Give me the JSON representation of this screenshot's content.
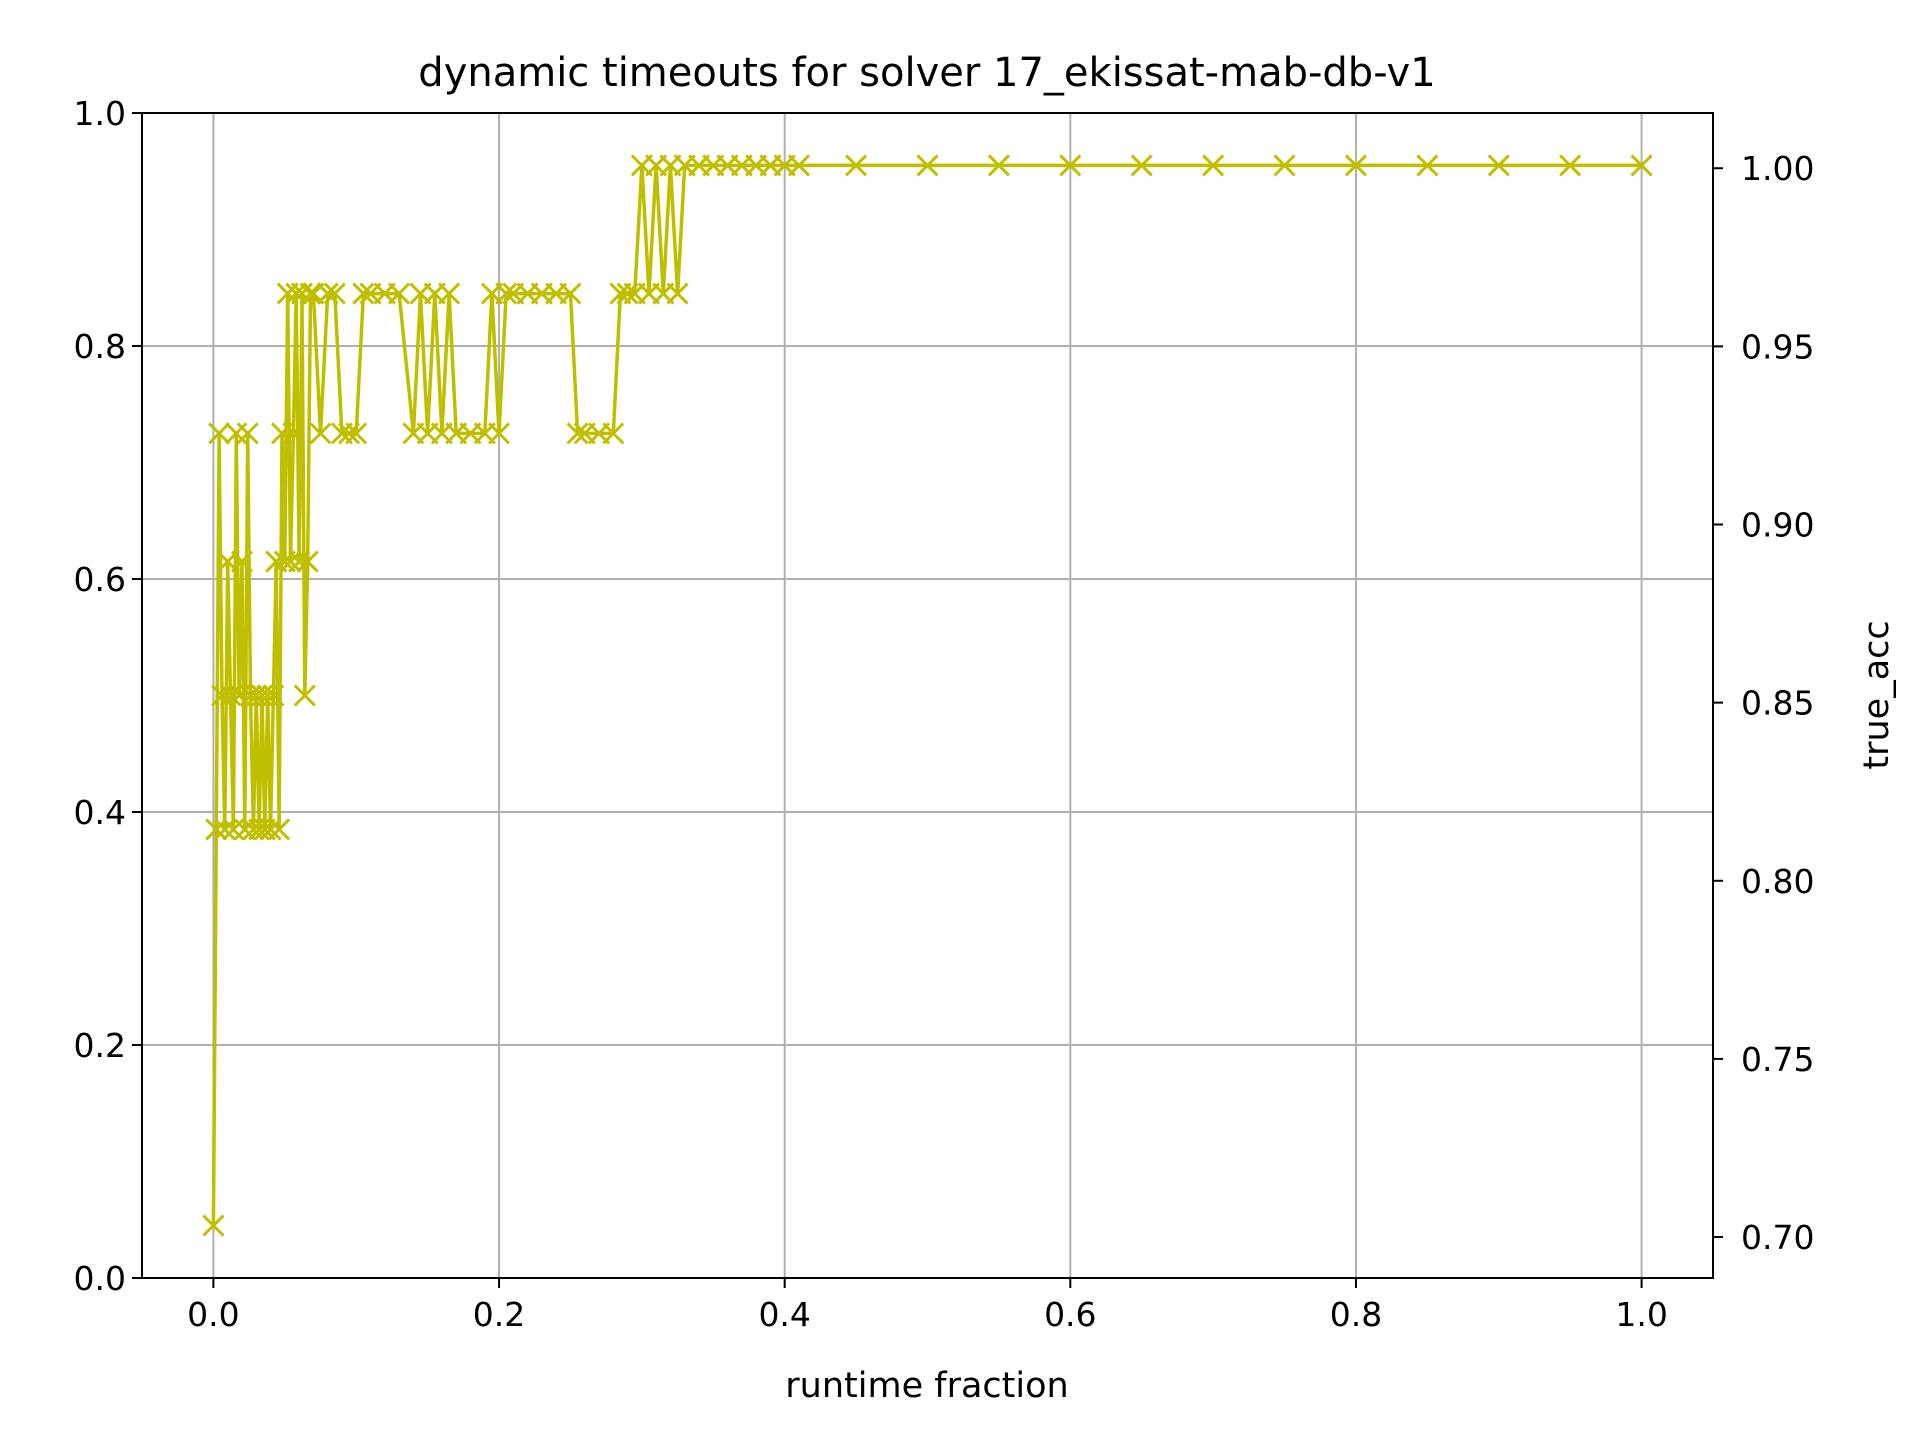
{
  "chart_data": {
    "type": "line",
    "title": "dynamic timeouts for solver 17_ekissat-mab-db-v1",
    "xlabel": "runtime fraction",
    "ylabel": "",
    "ylabel_right": "true_acc",
    "xlim": [
      -0.05,
      1.05
    ],
    "ylim": [
      0.0,
      1.0
    ],
    "ylim_right": [
      0.6885,
      1.0155
    ],
    "x_ticks": [
      "0.0",
      "0.2",
      "0.4",
      "0.6",
      "0.8",
      "1.0"
    ],
    "y_ticks": [
      "0.0",
      "0.2",
      "0.4",
      "0.6",
      "0.8",
      "1.0"
    ],
    "y_ticks_right": [
      "0.70",
      "0.75",
      "0.80",
      "0.85",
      "0.90",
      "0.95",
      "1.00"
    ],
    "grid": true,
    "colors": {
      "series": "#bfbf00",
      "right_label": "#ff0000"
    },
    "series": [
      {
        "marker": "x",
        "x": [
          0.0,
          0.002,
          0.004,
          0.006,
          0.008,
          0.01,
          0.012,
          0.014,
          0.016,
          0.018,
          0.02,
          0.022,
          0.024,
          0.026,
          0.028,
          0.03,
          0.032,
          0.034,
          0.036,
          0.038,
          0.04,
          0.042,
          0.044,
          0.046,
          0.048,
          0.05,
          0.052,
          0.054,
          0.056,
          0.058,
          0.06,
          0.062,
          0.064,
          0.066,
          0.068,
          0.07,
          0.075,
          0.08,
          0.085,
          0.09,
          0.095,
          0.1,
          0.105,
          0.11,
          0.12,
          0.13,
          0.14,
          0.145,
          0.15,
          0.155,
          0.16,
          0.165,
          0.17,
          0.18,
          0.19,
          0.195,
          0.2,
          0.205,
          0.21,
          0.22,
          0.23,
          0.24,
          0.25,
          0.255,
          0.26,
          0.27,
          0.28,
          0.285,
          0.29,
          0.295,
          0.3,
          0.305,
          0.31,
          0.315,
          0.32,
          0.325,
          0.33,
          0.34,
          0.35,
          0.36,
          0.37,
          0.38,
          0.39,
          0.4,
          0.41,
          0.45,
          0.5,
          0.55,
          0.6,
          0.65,
          0.7,
          0.75,
          0.8,
          0.85,
          0.9,
          0.95,
          1.0
        ],
        "y": [
          0.045,
          0.385,
          0.725,
          0.5,
          0.385,
          0.615,
          0.5,
          0.385,
          0.725,
          0.5,
          0.615,
          0.385,
          0.725,
          0.5,
          0.385,
          0.5,
          0.385,
          0.5,
          0.385,
          0.5,
          0.385,
          0.5,
          0.615,
          0.385,
          0.725,
          0.615,
          0.845,
          0.615,
          0.725,
          0.845,
          0.615,
          0.845,
          0.5,
          0.615,
          0.845,
          0.845,
          0.725,
          0.845,
          0.845,
          0.725,
          0.725,
          0.725,
          0.845,
          0.845,
          0.845,
          0.845,
          0.725,
          0.845,
          0.725,
          0.845,
          0.725,
          0.845,
          0.725,
          0.725,
          0.725,
          0.845,
          0.725,
          0.845,
          0.845,
          0.845,
          0.845,
          0.845,
          0.845,
          0.725,
          0.725,
          0.725,
          0.725,
          0.845,
          0.845,
          0.845,
          0.955,
          0.845,
          0.955,
          0.845,
          0.955,
          0.845,
          0.955,
          0.955,
          0.955,
          0.955,
          0.955,
          0.955,
          0.955,
          0.955,
          0.955,
          0.955,
          0.955,
          0.955,
          0.955,
          0.955,
          0.955,
          0.955,
          0.955,
          0.955,
          0.955,
          0.955,
          0.955
        ]
      }
    ]
  }
}
